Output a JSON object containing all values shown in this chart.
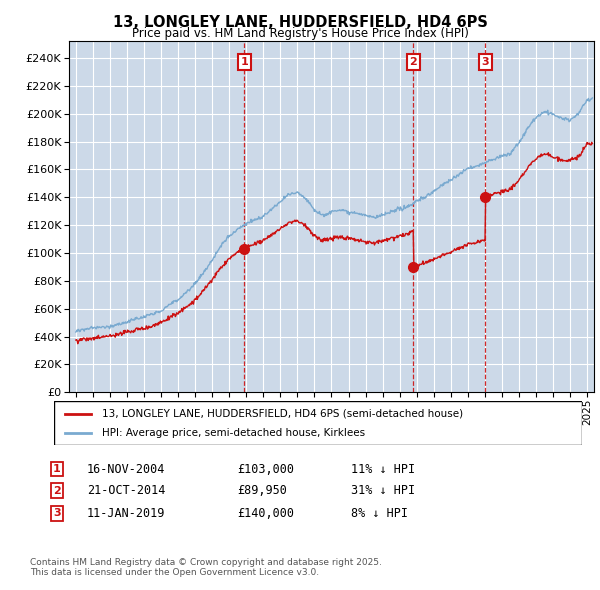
{
  "title": "13, LONGLEY LANE, HUDDERSFIELD, HD4 6PS",
  "subtitle": "Price paid vs. HM Land Registry's House Price Index (HPI)",
  "ytick_values": [
    0,
    20000,
    40000,
    60000,
    80000,
    100000,
    120000,
    140000,
    160000,
    180000,
    200000,
    220000,
    240000
  ],
  "ylim": [
    0,
    252000
  ],
  "xlim_start": 1994.6,
  "xlim_end": 2025.4,
  "background_color": "#ccd9e8",
  "legend_label_red": "13, LONGLEY LANE, HUDDERSFIELD, HD4 6PS (semi-detached house)",
  "legend_label_blue": "HPI: Average price, semi-detached house, Kirklees",
  "transactions": [
    {
      "number": 1,
      "date": "16-NOV-2004",
      "price": 103000,
      "year": 2004.88,
      "hpi_pct": "11% ↓ HPI"
    },
    {
      "number": 2,
      "date": "21-OCT-2014",
      "price": 89950,
      "year": 2014.8,
      "hpi_pct": "31% ↓ HPI"
    },
    {
      "number": 3,
      "date": "11-JAN-2019",
      "price": 140000,
      "year": 2019.03,
      "hpi_pct": "8% ↓ HPI"
    }
  ],
  "footnote": "Contains HM Land Registry data © Crown copyright and database right 2025.\nThis data is licensed under the Open Government Licence v3.0.",
  "hpi_line_color": "#7aaad0",
  "price_line_color": "#cc1111",
  "vline_color": "#cc1111",
  "marker_box_color": "#cc1111"
}
